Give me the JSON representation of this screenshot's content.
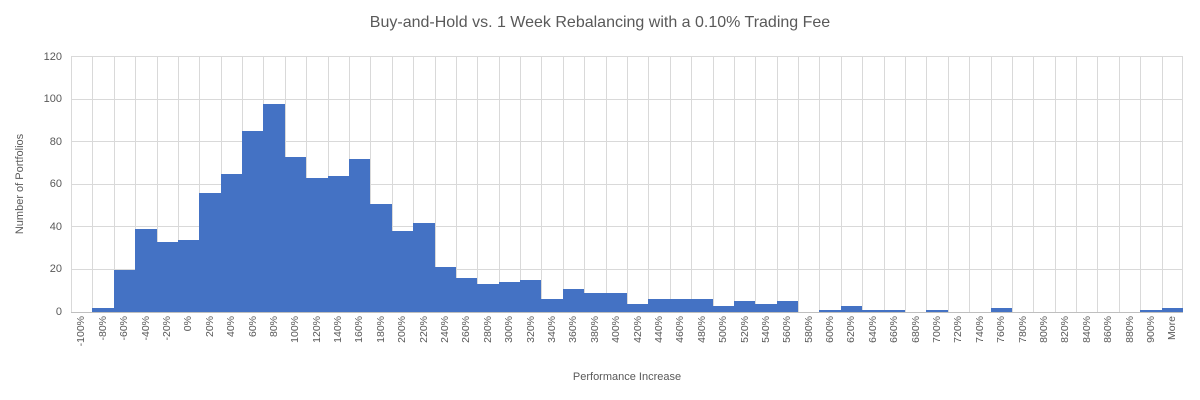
{
  "title": "Buy-and-Hold vs. 1 Week Rebalancing with a 0.10% Trading Fee",
  "colors": {
    "bar": "#4472C4",
    "text": "#595959",
    "grid": "#d9d9d9",
    "axis": "#bfbfbf",
    "background": "#ffffff"
  },
  "chart_data": {
    "type": "bar",
    "subtype": "histogram",
    "title": "Buy-and-Hold vs. 1 Week Rebalancing with a 0.10% Trading Fee",
    "xlabel": "Performance Increase",
    "ylabel": "Number of Portfolios",
    "ylim": [
      0,
      120
    ],
    "yticks": [
      0,
      20,
      40,
      60,
      80,
      100,
      120
    ],
    "grid": true,
    "legend_position": "none",
    "gap_width_percent": 0,
    "categories": [
      "-100%",
      "-80%",
      "-60%",
      "-40%",
      "-20%",
      "0%",
      "20%",
      "40%",
      "60%",
      "80%",
      "100%",
      "120%",
      "140%",
      "160%",
      "180%",
      "200%",
      "220%",
      "240%",
      "260%",
      "280%",
      "300%",
      "320%",
      "340%",
      "360%",
      "380%",
      "400%",
      "420%",
      "440%",
      "460%",
      "480%",
      "500%",
      "520%",
      "540%",
      "560%",
      "580%",
      "600%",
      "620%",
      "640%",
      "660%",
      "680%",
      "700%",
      "720%",
      "740%",
      "760%",
      "780%",
      "800%",
      "820%",
      "840%",
      "860%",
      "880%",
      "900%",
      "More"
    ],
    "values": [
      0,
      2,
      20,
      39,
      33,
      34,
      56,
      65,
      85,
      98,
      73,
      63,
      64,
      72,
      51,
      38,
      42,
      21,
      16,
      13,
      14,
      15,
      6,
      11,
      9,
      9,
      4,
      6,
      6,
      6,
      3,
      5,
      4,
      5,
      0,
      1,
      3,
      1,
      1,
      0,
      1,
      0,
      0,
      2,
      0,
      0,
      0,
      0,
      0,
      0,
      1,
      2
    ]
  }
}
